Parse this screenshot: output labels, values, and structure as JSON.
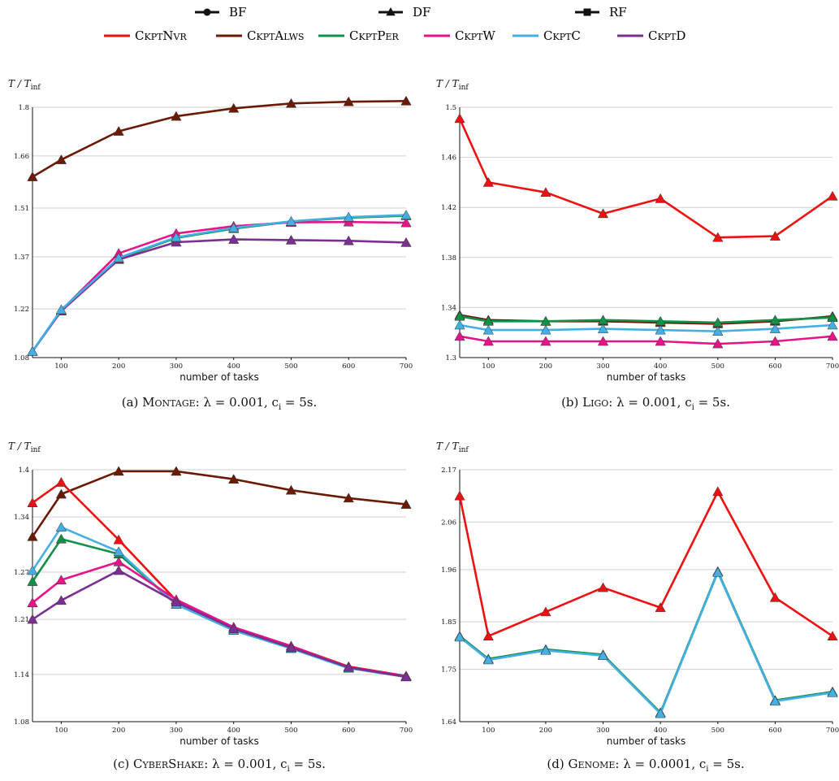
{
  "legend": {
    "markers": [
      {
        "label": "BF",
        "marker": "circle"
      },
      {
        "label": "DF",
        "marker": "triangle"
      },
      {
        "label": "RF",
        "marker": "square"
      }
    ],
    "strategies": [
      {
        "label": "CkptNvr",
        "color": "#ee1111"
      },
      {
        "label": "CkptAlws",
        "color": "#6b1a06"
      },
      {
        "label": "CkptPer",
        "color": "#119148"
      },
      {
        "label": "CkptW",
        "color": "#e8128a"
      },
      {
        "label": "CkptC",
        "color": "#45aee2"
      },
      {
        "label": "CkptD",
        "color": "#7a2f91"
      }
    ]
  },
  "chart_data": [
    {
      "type": "line",
      "caption_prefix": "(a) ",
      "caption_name": "Montage",
      "caption_params": ": λ = 0.001, c",
      "caption_sub": "i",
      "caption_tail": " = 5s.",
      "ylabel": "T / T",
      "ylabel_sub": "inf",
      "xlabel": "number of tasks",
      "x": [
        50,
        100,
        200,
        300,
        400,
        500,
        600,
        700
      ],
      "xticks": [
        "100",
        "200",
        "300",
        "400",
        "500",
        "600",
        "700"
      ],
      "xlim": [
        50,
        700
      ],
      "ylim": [
        1.08,
        1.8
      ],
      "yticks": [
        "1.08",
        "1.22",
        "1.37",
        "1.51",
        "1.66",
        "1.8"
      ],
      "series": [
        {
          "name": "CkptAlws",
          "color": "#6b1a06",
          "values": [
            1.6,
            1.649,
            1.731,
            1.774,
            1.797,
            1.811,
            1.816,
            1.818
          ]
        },
        {
          "name": "CkptPer",
          "color": "#119148",
          "values": [
            1.098,
            1.216,
            1.365,
            1.424,
            1.451,
            1.471,
            1.482,
            1.488
          ]
        },
        {
          "name": "CkptW",
          "color": "#e8128a",
          "values": [
            1.098,
            1.216,
            1.38,
            1.437,
            1.458,
            1.469,
            1.47,
            1.468
          ]
        },
        {
          "name": "CkptD",
          "color": "#7a2f91",
          "values": [
            1.098,
            1.214,
            1.362,
            1.412,
            1.42,
            1.418,
            1.416,
            1.411
          ]
        },
        {
          "name": "CkptC",
          "color": "#45aee2",
          "values": [
            1.098,
            1.218,
            1.367,
            1.426,
            1.453,
            1.472,
            1.484,
            1.49
          ]
        }
      ]
    },
    {
      "type": "line",
      "caption_prefix": "(b) ",
      "caption_name": "Ligo",
      "caption_params": ": λ = 0.001, c",
      "caption_sub": "i",
      "caption_tail": " = 5s.",
      "ylabel": "T / T",
      "ylabel_sub": "inf",
      "xlabel": "number of tasks",
      "x": [
        50,
        100,
        200,
        300,
        400,
        500,
        600,
        700
      ],
      "xticks": [
        "100",
        "200",
        "300",
        "400",
        "500",
        "600",
        "700"
      ],
      "xlim": [
        50,
        700
      ],
      "ylim": [
        1.3,
        1.5
      ],
      "yticks": [
        "1.3",
        "1.34",
        "1.38",
        "1.42",
        "1.46",
        "1.5"
      ],
      "series": [
        {
          "name": "CkptNvr",
          "color": "#ee1111",
          "values": [
            1.491,
            1.44,
            1.432,
            1.415,
            1.427,
            1.396,
            1.397,
            1.429
          ]
        },
        {
          "name": "CkptAlws",
          "color": "#6b1a06",
          "values": [
            1.334,
            1.33,
            1.329,
            1.329,
            1.328,
            1.327,
            1.329,
            1.333
          ]
        },
        {
          "name": "CkptPer",
          "color": "#119148",
          "values": [
            1.333,
            1.329,
            1.329,
            1.33,
            1.329,
            1.328,
            1.33,
            1.332
          ]
        },
        {
          "name": "CkptC",
          "color": "#45aee2",
          "values": [
            1.326,
            1.322,
            1.322,
            1.323,
            1.322,
            1.321,
            1.323,
            1.326
          ]
        },
        {
          "name": "CkptW",
          "color": "#e8128a",
          "values": [
            1.317,
            1.313,
            1.313,
            1.313,
            1.313,
            1.311,
            1.313,
            1.317
          ]
        }
      ]
    },
    {
      "type": "line",
      "caption_prefix": "(c) ",
      "caption_name": "CyberShake",
      "caption_params": ": λ = 0.001, c",
      "caption_sub": "i",
      "caption_tail": " = 5s.",
      "ylabel": "T / T",
      "ylabel_sub": "inf",
      "xlabel": "number of tasks",
      "x": [
        50,
        100,
        200,
        300,
        400,
        500,
        600,
        700
      ],
      "xticks": [
        "100",
        "200",
        "300",
        "400",
        "500",
        "600",
        "700"
      ],
      "xlim": [
        50,
        700
      ],
      "ylim": [
        1.08,
        1.4
      ],
      "yticks": [
        "1.08",
        "1.14",
        "1.21",
        "1.27",
        "1.34",
        "1.4"
      ],
      "series": [
        {
          "name": "CkptAlws",
          "color": "#6b1a06",
          "values": [
            1.315,
            1.369,
            1.398,
            1.398,
            1.388,
            1.374,
            1.364,
            1.356
          ]
        },
        {
          "name": "CkptNvr",
          "color": "#ee1111",
          "values": [
            1.358,
            1.384,
            1.311,
            1.234,
            1.2,
            1.176,
            1.15,
            1.138
          ]
        },
        {
          "name": "CkptPer",
          "color": "#119148",
          "values": [
            1.258,
            1.312,
            1.293,
            1.229,
            1.196,
            1.173,
            1.148,
            1.137
          ]
        },
        {
          "name": "CkptC",
          "color": "#45aee2",
          "values": [
            1.272,
            1.327,
            1.296,
            1.229,
            1.196,
            1.173,
            1.148,
            1.137
          ]
        },
        {
          "name": "CkptW",
          "color": "#e8128a",
          "values": [
            1.231,
            1.26,
            1.283,
            1.235,
            1.2,
            1.176,
            1.149,
            1.138
          ]
        },
        {
          "name": "CkptD",
          "color": "#7a2f91",
          "values": [
            1.21,
            1.234,
            1.272,
            1.232,
            1.198,
            1.174,
            1.149,
            1.137
          ]
        }
      ]
    },
    {
      "type": "line",
      "caption_prefix": "(d) ",
      "caption_name": "Genome",
      "caption_params": ": λ = 0.0001, c",
      "caption_sub": "i",
      "caption_tail": " = 5s.",
      "ylabel": "T / T",
      "ylabel_sub": "inf",
      "xlabel": "number of tasks",
      "x": [
        50,
        100,
        200,
        300,
        400,
        500,
        600,
        700
      ],
      "xticks": [
        "100",
        "200",
        "300",
        "400",
        "500",
        "600",
        "700"
      ],
      "xlim": [
        50,
        700
      ],
      "ylim": [
        1.64,
        2.17
      ],
      "yticks": [
        "1.64",
        "1.75",
        "1.85",
        "1.96",
        "2.06",
        "2.17"
      ],
      "series": [
        {
          "name": "CkptNvr",
          "color": "#ee1111",
          "values": [
            2.115,
            1.82,
            1.871,
            1.922,
            1.88,
            2.124,
            1.901,
            1.82
          ]
        },
        {
          "name": "CkptPer",
          "color": "#119148",
          "values": [
            1.82,
            1.772,
            1.792,
            1.781,
            1.659,
            1.956,
            1.685,
            1.703
          ]
        },
        {
          "name": "CkptC",
          "color": "#45aee2",
          "values": [
            1.818,
            1.77,
            1.79,
            1.779,
            1.657,
            1.954,
            1.683,
            1.701
          ]
        }
      ]
    }
  ]
}
